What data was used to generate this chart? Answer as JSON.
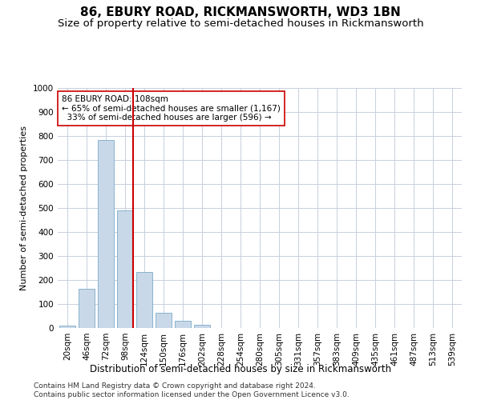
{
  "title": "86, EBURY ROAD, RICKMANSWORTH, WD3 1BN",
  "subtitle": "Size of property relative to semi-detached houses in Rickmansworth",
  "xlabel": "Distribution of semi-detached houses by size in Rickmansworth",
  "ylabel": "Number of semi-detached properties",
  "footer": "Contains HM Land Registry data © Crown copyright and database right 2024.\nContains public sector information licensed under the Open Government Licence v3.0.",
  "bar_color": "#c8d8e8",
  "bar_edge_color": "#7aaac8",
  "grid_color": "#c8d0dc",
  "redline_color": "#cc0000",
  "annotation_box_color": "#cc0000",
  "bin_labels": [
    "20sqm",
    "46sqm",
    "72sqm",
    "98sqm",
    "124sqm",
    "150sqm",
    "176sqm",
    "202sqm",
    "228sqm",
    "254sqm",
    "280sqm",
    "305sqm",
    "331sqm",
    "357sqm",
    "383sqm",
    "409sqm",
    "435sqm",
    "461sqm",
    "487sqm",
    "513sqm",
    "539sqm"
  ],
  "bin_values": [
    10,
    165,
    785,
    490,
    235,
    65,
    30,
    12,
    0,
    0,
    0,
    0,
    0,
    0,
    0,
    0,
    0,
    0,
    0,
    0,
    0
  ],
  "property_size_label": "86 EBURY ROAD: 108sqm",
  "pct_smaller": 65,
  "n_smaller": 1167,
  "pct_larger": 33,
  "n_larger": 596,
  "redline_x": 3.42,
  "ylim": [
    0,
    1000
  ],
  "yticks": [
    0,
    100,
    200,
    300,
    400,
    500,
    600,
    700,
    800,
    900,
    1000
  ],
  "title_fontsize": 11,
  "subtitle_fontsize": 9.5,
  "axis_label_fontsize": 8,
  "tick_fontsize": 7.5,
  "annotation_fontsize": 7.5,
  "footer_fontsize": 6.5
}
